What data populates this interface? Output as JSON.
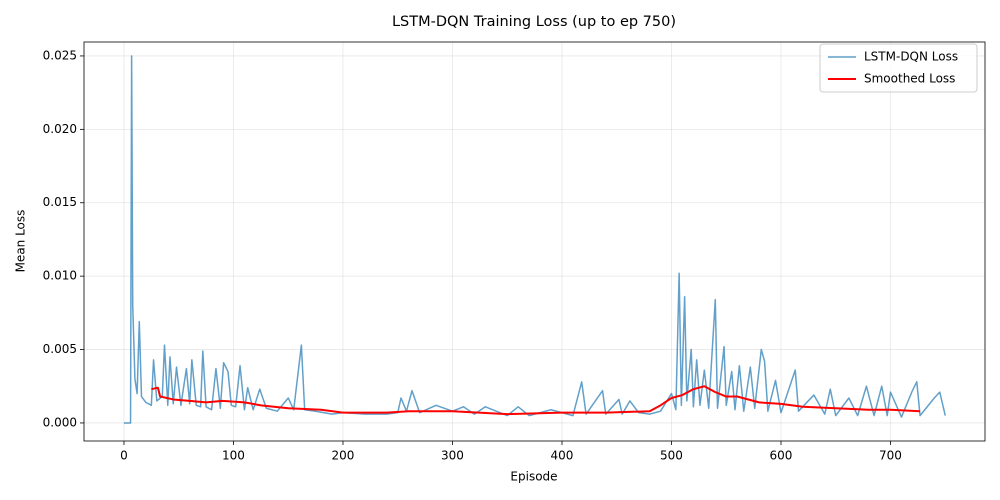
{
  "chart_data": {
    "type": "line",
    "title": "LSTM-DQN Training Loss (up to ep 750)",
    "xlabel": "Episode",
    "ylabel": "Mean Loss",
    "xlim": [
      -36.5,
      786.3
    ],
    "ylim": [
      -0.00123,
      0.02595
    ],
    "xticks": [
      0,
      100,
      200,
      300,
      400,
      500,
      600,
      700
    ],
    "yticks": [
      {
        "value": 0,
        "label": "0.000"
      },
      {
        "value": 0.005,
        "label": "0.005"
      },
      {
        "value": 0.01,
        "label": "0.010"
      },
      {
        "value": 0.015,
        "label": "0.015"
      },
      {
        "value": 0.02,
        "label": "0.020"
      },
      {
        "value": 0.025,
        "label": "0.025"
      }
    ],
    "grid": true,
    "legend": "upper right",
    "series": [
      {
        "name": "LSTM-DQN Loss",
        "color": "#1f77b4",
        "width": 1.5,
        "opacity": 0.7,
        "x": [
          0,
          5,
          6,
          7,
          8,
          10,
          12,
          14,
          16,
          20,
          25,
          27,
          30,
          35,
          37,
          40,
          42,
          45,
          48,
          52,
          57,
          60,
          62,
          66,
          70,
          72,
          75,
          80,
          84,
          88,
          91,
          95,
          98,
          102,
          106,
          110,
          113,
          118,
          124,
          130,
          140,
          150,
          155,
          162,
          165,
          175,
          190,
          200,
          220,
          240,
          250,
          253,
          258,
          263,
          270,
          285,
          300,
          310,
          320,
          330,
          350,
          360,
          370,
          390,
          410,
          418,
          422,
          437,
          440,
          452,
          455,
          462,
          470,
          480,
          490,
          500,
          504,
          507,
          509,
          512,
          514,
          518,
          520,
          523,
          526,
          530,
          534,
          540,
          542,
          548,
          550,
          555,
          558,
          562,
          566,
          572,
          576,
          582,
          585,
          588,
          595,
          600,
          613,
          616,
          630,
          640,
          645,
          650,
          662,
          670,
          678,
          685,
          692,
          697,
          700,
          710,
          720,
          724,
          727,
          740,
          745,
          750
        ],
        "values": [
          0,
          0,
          0,
          0.025,
          0.008,
          0.003,
          0.002,
          0.0069,
          0.0018,
          0.0014,
          0.0012,
          0.0043,
          0.0015,
          0.0018,
          0.0053,
          0.0012,
          0.0045,
          0.0013,
          0.0038,
          0.0012,
          0.0037,
          0.0013,
          0.0043,
          0.0012,
          0.0011,
          0.0049,
          0.0011,
          0.0009,
          0.0037,
          0.001,
          0.0041,
          0.0035,
          0.0012,
          0.0011,
          0.0039,
          0.0009,
          0.0024,
          0.0009,
          0.0023,
          0.001,
          0.0008,
          0.0017,
          0.0009,
          0.0053,
          0.0009,
          0.0008,
          0.0006,
          0.0007,
          0.0006,
          0.0006,
          0.0007,
          0.0017,
          0.0008,
          0.0022,
          0.0007,
          0.0012,
          0.0008,
          0.0011,
          0.0006,
          0.0011,
          0.0005,
          0.0011,
          0.0005,
          0.0009,
          0.0005,
          0.0028,
          0.0006,
          0.0022,
          0.0006,
          0.0016,
          0.0006,
          0.0015,
          0.0007,
          0.0006,
          0.0008,
          0.002,
          0.0009,
          0.0102,
          0.0012,
          0.0086,
          0.0015,
          0.005,
          0.0011,
          0.0043,
          0.0012,
          0.0036,
          0.001,
          0.0084,
          0.001,
          0.0052,
          0.0012,
          0.0035,
          0.0009,
          0.0039,
          0.0008,
          0.0038,
          0.001,
          0.005,
          0.0042,
          0.0008,
          0.0029,
          0.0007,
          0.0036,
          0.0008,
          0.0019,
          0.0006,
          0.0023,
          0.0005,
          0.0017,
          0.0005,
          0.0025,
          0.0005,
          0.0025,
          0.0005,
          0.0021,
          0.0004,
          0.0022,
          0.0028,
          0.0005,
          0.0017,
          0.0021,
          0.0005
        ]
      },
      {
        "name": "Smoothed Loss",
        "color": "#ff0000",
        "width": 2,
        "opacity": 1,
        "x": [
          25,
          31,
          33,
          45,
          60,
          75,
          90,
          110,
          125,
          150,
          180,
          200,
          240,
          260,
          300,
          350,
          400,
          440,
          480,
          490,
          500,
          510,
          520,
          530,
          540,
          550,
          560,
          580,
          600,
          620,
          650,
          680,
          700,
          727
        ],
        "values": [
          0.0023,
          0.0024,
          0.0018,
          0.0016,
          0.0015,
          0.0014,
          0.0015,
          0.0014,
          0.0012,
          0.001,
          0.0009,
          0.0007,
          0.0007,
          0.0008,
          0.0008,
          0.0006,
          0.0007,
          0.0007,
          0.0008,
          0.0012,
          0.0017,
          0.0019,
          0.0023,
          0.0025,
          0.0021,
          0.0018,
          0.0018,
          0.0014,
          0.0013,
          0.0011,
          0.001,
          0.0009,
          0.0009,
          0.0008
        ]
      }
    ]
  }
}
